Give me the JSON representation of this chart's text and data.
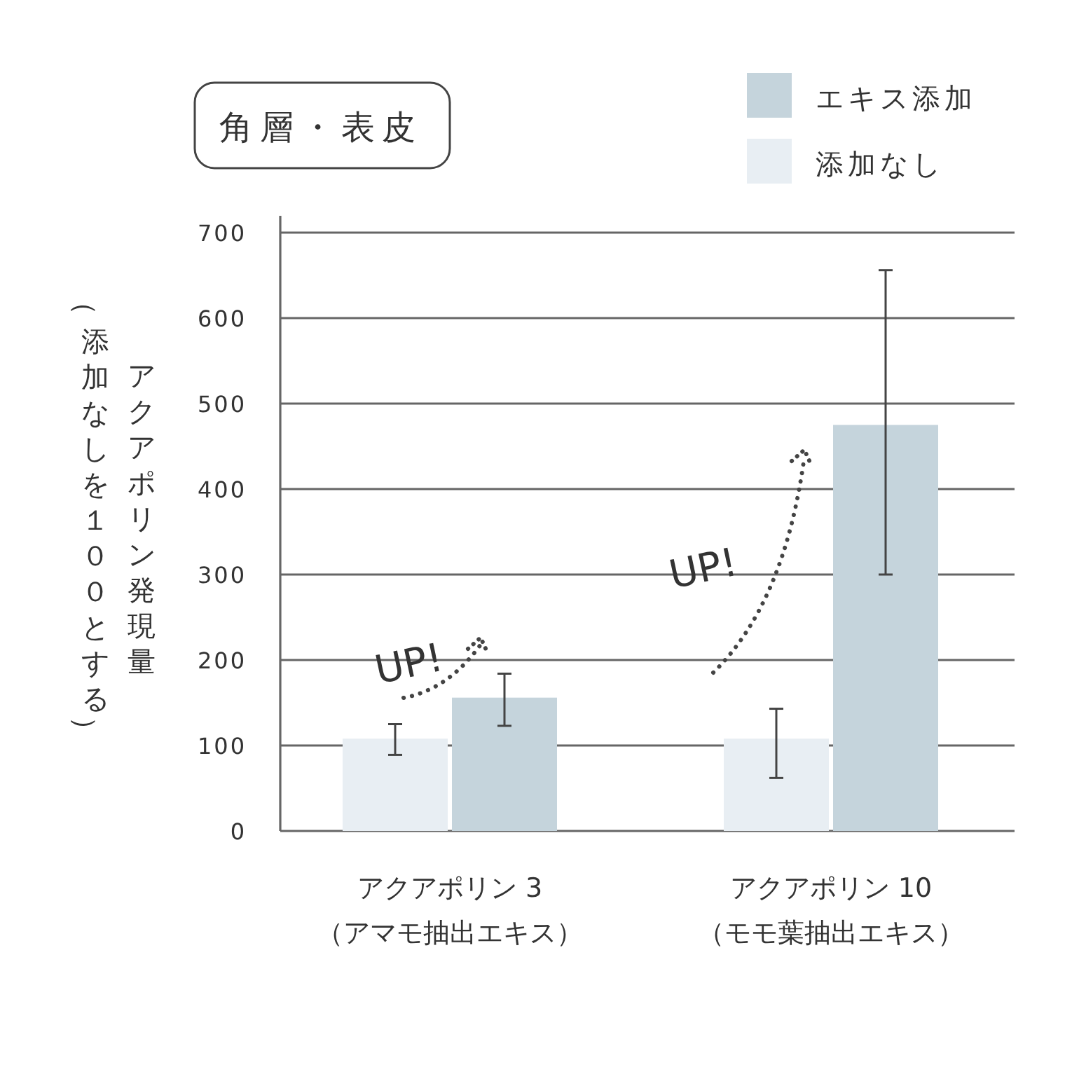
{
  "chart_data": {
    "type": "bar",
    "title": "角層・表皮",
    "ylabel": "アクアポリン発現量",
    "categories": [
      "アクアポリン 3\n（アマモ抽出エキス）",
      "アクアポリン 10\n（モモ葉抽出エキス）"
    ],
    "series": [
      {
        "name": "添加なし",
        "color": "#e8eef3",
        "values": [
          108,
          108
        ],
        "errors": [
          [
            89,
            125
          ],
          [
            62,
            143
          ]
        ]
      },
      {
        "name": "エキス添加",
        "color": "#c5d4dc",
        "values": [
          156,
          475
        ],
        "errors": [
          [
            123,
            184
          ],
          [
            300,
            656
          ]
        ]
      }
    ],
    "ylim": [
      0,
      700
    ],
    "yticks": [
      0,
      100,
      200,
      300,
      400,
      500,
      600,
      700
    ],
    "grid": "y",
    "legend": "top right",
    "annotations": [
      "UP!",
      "UP!",
      "（添加なしを１００とする）"
    ]
  }
}
